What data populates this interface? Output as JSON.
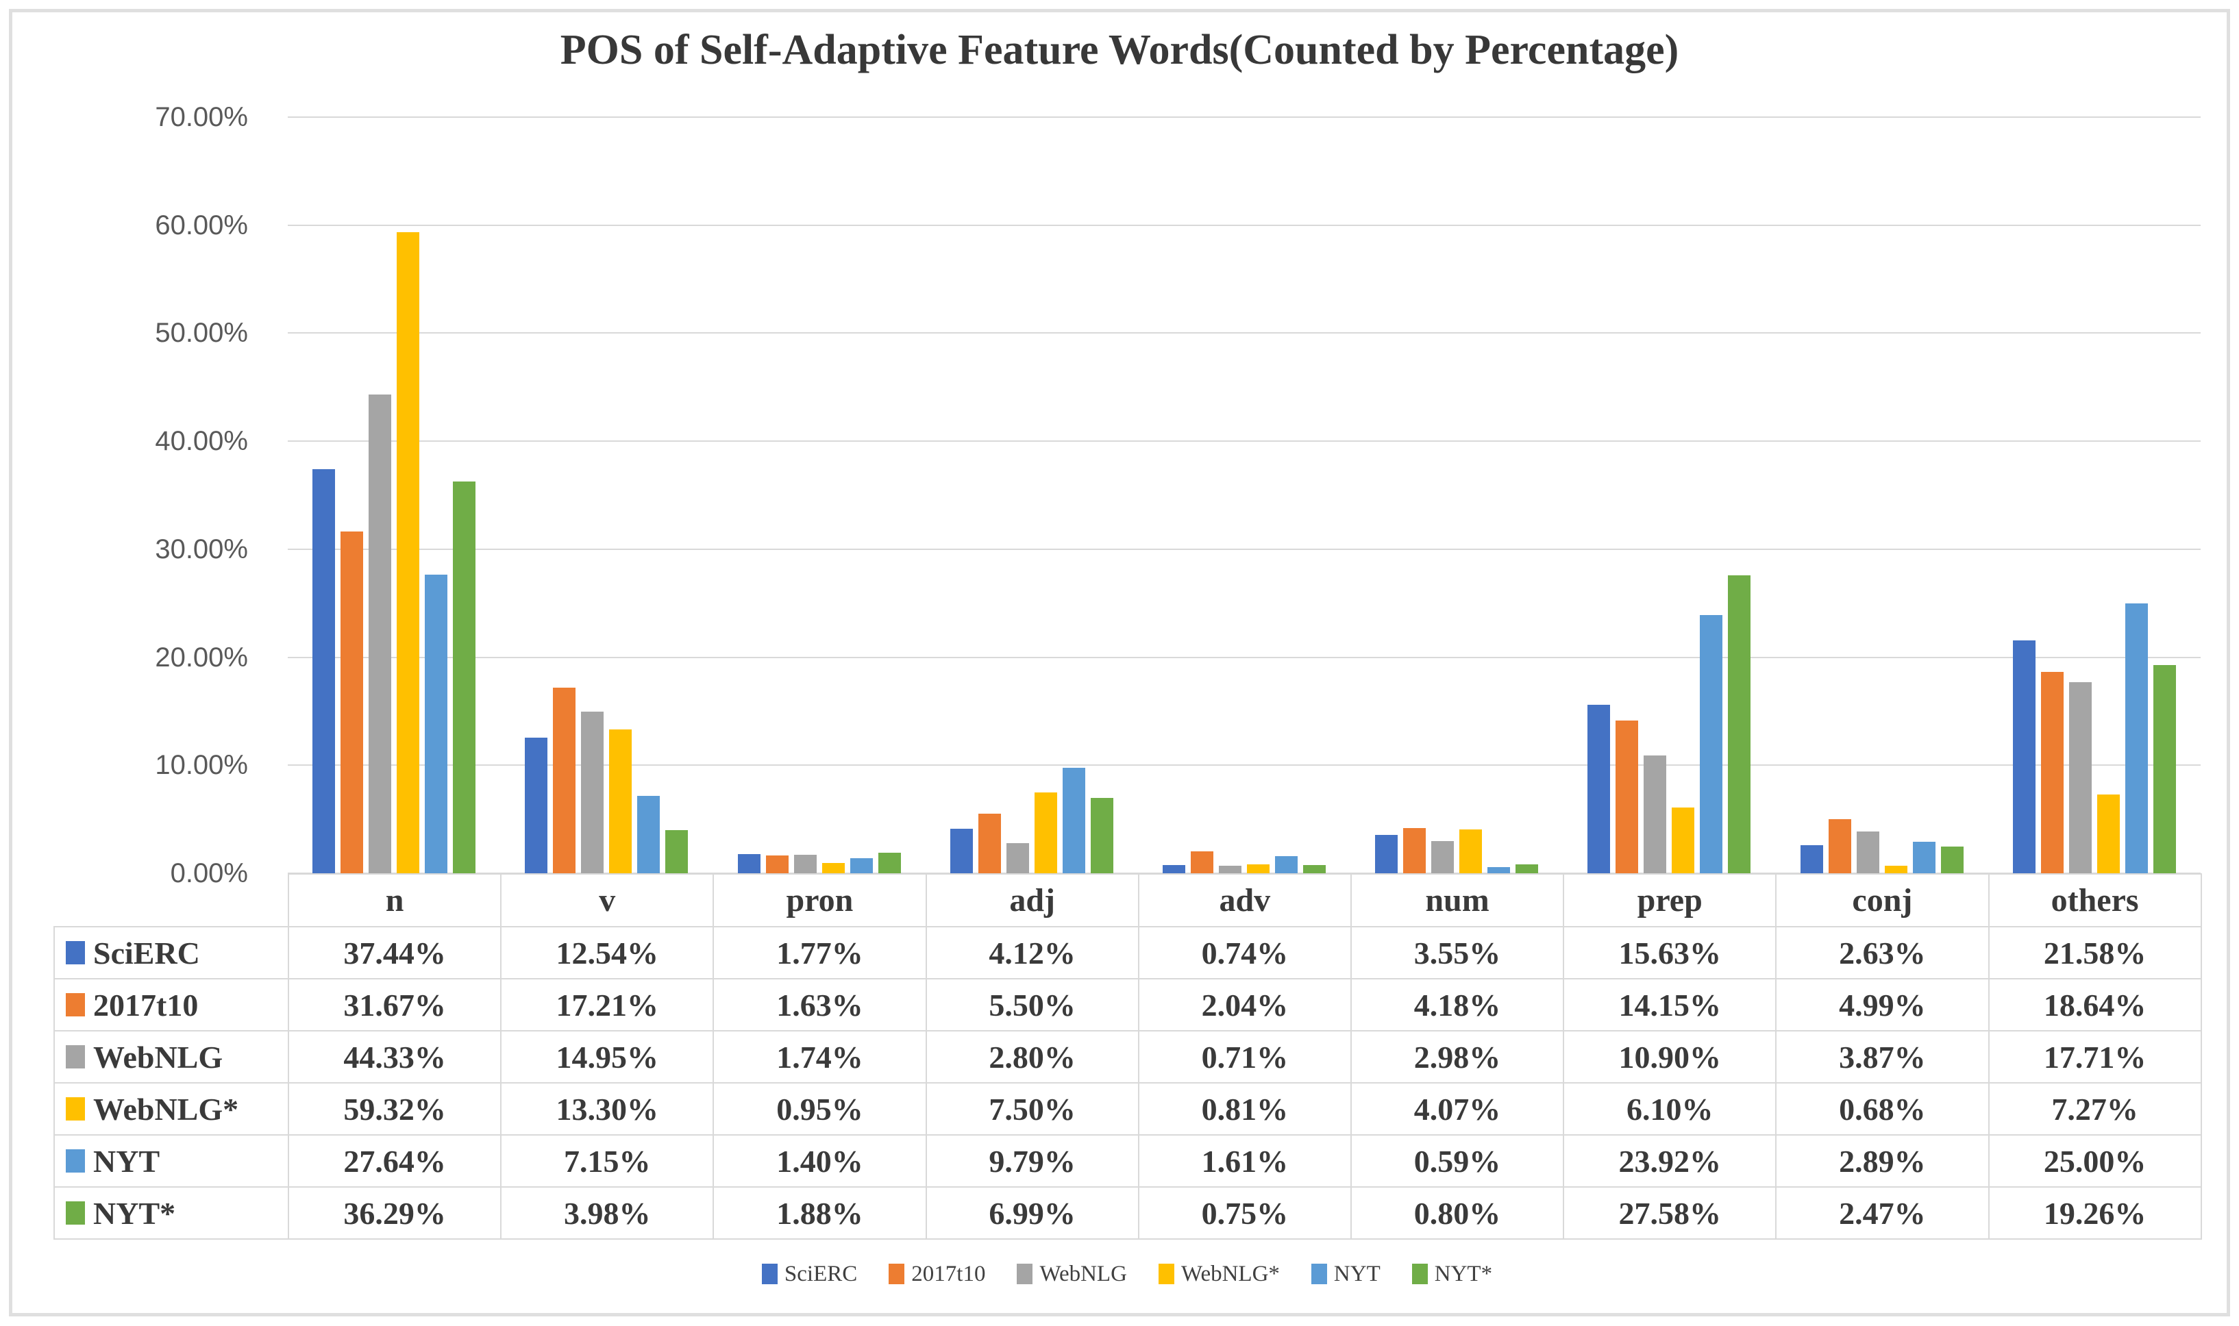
{
  "chart": {
    "title": "POS of Self-Adaptive Feature Words(Counted by Percentage)"
  },
  "chart_data": {
    "type": "bar",
    "title": "POS of Self-Adaptive Feature Words(Counted by Percentage)",
    "categories": [
      "n",
      "v",
      "pron",
      "adj",
      "adv",
      "num",
      "prep",
      "conj",
      "others"
    ],
    "series": [
      {
        "name": "SciERC",
        "color": "#4472C4",
        "values": [
          37.44,
          12.54,
          1.77,
          4.12,
          0.74,
          3.55,
          15.63,
          2.63,
          21.58
        ]
      },
      {
        "name": "2017t10",
        "color": "#ED7D31",
        "values": [
          31.67,
          17.21,
          1.63,
          5.5,
          2.04,
          4.18,
          14.15,
          4.99,
          18.64
        ]
      },
      {
        "name": "WebNLG",
        "color": "#A5A5A5",
        "values": [
          44.33,
          14.95,
          1.74,
          2.8,
          0.71,
          2.98,
          10.9,
          3.87,
          17.71
        ]
      },
      {
        "name": "WebNLG*",
        "color": "#FFC000",
        "values": [
          59.32,
          13.3,
          0.95,
          7.5,
          0.81,
          4.07,
          6.1,
          0.68,
          7.27
        ]
      },
      {
        "name": "NYT",
        "color": "#5B9BD5",
        "values": [
          27.64,
          7.15,
          1.4,
          9.79,
          1.61,
          0.59,
          23.92,
          2.89,
          25.0
        ]
      },
      {
        "name": "NYT*",
        "color": "#70AD47",
        "values": [
          36.29,
          3.98,
          1.88,
          6.99,
          0.75,
          0.8,
          27.58,
          2.47,
          19.26
        ]
      }
    ],
    "value_suffix": "%",
    "y_tick_labels": [
      "70.00%",
      "60.00%",
      "50.00%",
      "40.00%",
      "30.00%",
      "20.00%",
      "10.00%",
      "0.00%"
    ],
    "ylim": [
      0,
      70
    ],
    "grid": true,
    "legend_position": "bottom"
  }
}
